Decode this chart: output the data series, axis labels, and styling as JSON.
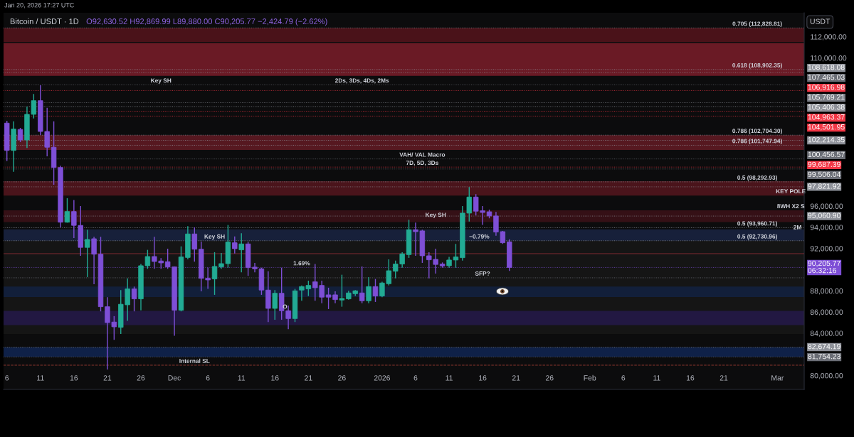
{
  "chart_data": {
    "type": "candlestick",
    "title": "Bitcoin / USDT · 1D",
    "subtitle": "O92,630.52 H92,869.99 L89,880.00 C90,205.77 −2,424.79 (−2.62%)",
    "ylabel": "USDT",
    "x": [
      "2025-11-06",
      "2025-11-07",
      "2025-11-08",
      "2025-11-09",
      "2025-11-10",
      "2025-11-11",
      "2025-11-12",
      "2025-11-13",
      "2025-11-14",
      "2025-11-15",
      "2025-11-16",
      "2025-11-17",
      "2025-11-18",
      "2025-11-19",
      "2025-11-20",
      "2025-11-21",
      "2025-11-22",
      "2025-11-23",
      "2025-11-24",
      "2025-11-25",
      "2025-11-26",
      "2025-11-27",
      "2025-11-28",
      "2025-11-29",
      "2025-11-30",
      "2025-12-01",
      "2025-12-02",
      "2025-12-03",
      "2025-12-04",
      "2025-12-05",
      "2025-12-06",
      "2025-12-07",
      "2025-12-08",
      "2025-12-09",
      "2025-12-10",
      "2025-12-11",
      "2025-12-12",
      "2025-12-13",
      "2025-12-14",
      "2025-12-15",
      "2025-12-16",
      "2025-12-17",
      "2025-12-18",
      "2025-12-19",
      "2025-12-20",
      "2025-12-21",
      "2025-12-22",
      "2025-12-23",
      "2025-12-24",
      "2025-12-25",
      "2025-12-26",
      "2025-12-27",
      "2025-12-28",
      "2025-12-29",
      "2025-12-30",
      "2025-12-31",
      "2026-01-01",
      "2026-01-02",
      "2026-01-03",
      "2026-01-04",
      "2026-01-05",
      "2026-01-06",
      "2026-01-07",
      "2026-01-08",
      "2026-01-09",
      "2026-01-10",
      "2026-01-11",
      "2026-01-12",
      "2026-01-13",
      "2026-01-14",
      "2026-01-15",
      "2026-01-16",
      "2026-01-17",
      "2026-01-18",
      "2026-01-19",
      "2026-01-20"
    ],
    "ohlc": [
      [
        103840,
        104060,
        100260,
        101260
      ],
      [
        101260,
        104010,
        99250,
        103280
      ],
      [
        103240,
        103390,
        102050,
        102250
      ],
      [
        102250,
        105400,
        101490,
        104670
      ],
      [
        104670,
        106590,
        104280,
        105960
      ],
      [
        105960,
        107420,
        102720,
        103050
      ],
      [
        103050,
        105290,
        100710,
        101560
      ],
      [
        101560,
        104010,
        98020,
        99650
      ],
      [
        99650,
        99810,
        93990,
        94480
      ],
      [
        94480,
        96750,
        94440,
        95490
      ],
      [
        95490,
        96570,
        92990,
        94180
      ],
      [
        94180,
        96010,
        91310,
        92100
      ],
      [
        92100,
        93770,
        89300,
        92850
      ],
      [
        92920,
        93100,
        88630,
        91460
      ],
      [
        91460,
        93100,
        86060,
        86500
      ],
      [
        86500,
        87400,
        80570,
        85000
      ],
      [
        85050,
        85610,
        83370,
        84600
      ],
      [
        84550,
        88070,
        83930,
        86730
      ],
      [
        86680,
        89180,
        85160,
        88180
      ],
      [
        88180,
        88400,
        86060,
        87240
      ],
      [
        87240,
        90530,
        86160,
        90370
      ],
      [
        90370,
        91870,
        90080,
        91240
      ],
      [
        91240,
        93100,
        90080,
        90770
      ],
      [
        90820,
        91090,
        90080,
        90640
      ],
      [
        90750,
        91980,
        90080,
        90260
      ],
      [
        90260,
        90300,
        83750,
        86160
      ],
      [
        86160,
        92200,
        86060,
        91200
      ],
      [
        91150,
        94110,
        90980,
        93370
      ],
      [
        93370,
        93990,
        90750,
        91930
      ],
      [
        91930,
        92650,
        87950,
        89180
      ],
      [
        89180,
        90190,
        88180,
        89030
      ],
      [
        89120,
        91650,
        87620,
        90300
      ],
      [
        90260,
        91580,
        90080,
        90570
      ],
      [
        90570,
        94220,
        90190,
        92610
      ],
      [
        92540,
        93140,
        91530,
        91980
      ],
      [
        91870,
        93440,
        89750,
        92430
      ],
      [
        92430,
        92650,
        89410,
        90190
      ],
      [
        90240,
        90630,
        89750,
        90080
      ],
      [
        90080,
        90190,
        87620,
        88070
      ],
      [
        88070,
        89850,
        85050,
        86340
      ],
      [
        86340,
        88070,
        85270,
        87770
      ],
      [
        87770,
        90190,
        85270,
        86120
      ],
      [
        86120,
        86610,
        84380,
        85380
      ],
      [
        85380,
        88180,
        85050,
        88000
      ],
      [
        88070,
        88510,
        87060,
        88400
      ],
      [
        88180,
        88960,
        87510,
        88510
      ],
      [
        88850,
        90530,
        87060,
        88290
      ],
      [
        88510,
        88960,
        86830,
        87400
      ],
      [
        87620,
        88290,
        86280,
        87400
      ],
      [
        87620,
        87950,
        86830,
        87170
      ],
      [
        87130,
        89520,
        86500,
        87280
      ],
      [
        87240,
        88000,
        87170,
        87800
      ],
      [
        87730,
        88070,
        87510,
        88000
      ],
      [
        87800,
        90300,
        86830,
        87060
      ],
      [
        87060,
        89300,
        86830,
        88400
      ],
      [
        88400,
        89120,
        86950,
        87510
      ],
      [
        87510,
        88850,
        87400,
        88740
      ],
      [
        88670,
        90970,
        88510,
        89900
      ],
      [
        89850,
        90860,
        89180,
        90530
      ],
      [
        90530,
        91650,
        90190,
        91490
      ],
      [
        91420,
        94710,
        91110,
        93770
      ],
      [
        93770,
        94440,
        91310,
        93590
      ],
      [
        93660,
        93770,
        90640,
        91310
      ],
      [
        91310,
        91650,
        89180,
        90930
      ],
      [
        90970,
        91980,
        89630,
        90490
      ],
      [
        90530,
        90680,
        90190,
        90350
      ],
      [
        90370,
        91200,
        90190,
        90910
      ],
      [
        90910,
        92430,
        90190,
        91200
      ],
      [
        91130,
        96010,
        90860,
        95340
      ],
      [
        95340,
        97800,
        94550,
        96860
      ],
      [
        96860,
        97130,
        95120,
        95520
      ],
      [
        95560,
        96010,
        94220,
        95400
      ],
      [
        95470,
        95670,
        94850,
        95070
      ],
      [
        95070,
        95450,
        93210,
        93550
      ],
      [
        93590,
        93660,
        92430,
        92540
      ],
      [
        92630.52,
        92869.99,
        89880.0,
        90205.77
      ]
    ],
    "colors": [
      "#7e4fd6",
      "#22ab94",
      "#7e4fd6",
      "#22ab94",
      "#22ab94",
      "#7e4fd6",
      "#7e4fd6",
      "#7e4fd6",
      "#7e4fd6",
      "#22ab94",
      "#7e4fd6",
      "#7e4fd6",
      "#22ab94",
      "#7e4fd6",
      "#7e4fd6",
      "#7e4fd6",
      "#7e4fd6",
      "#22ab94",
      "#22ab94",
      "#7e4fd6",
      "#22ab94",
      "#22ab94",
      "#7e4fd6",
      "#7e4fd6",
      "#7e4fd6",
      "#7e4fd6",
      "#22ab94",
      "#22ab94",
      "#7e4fd6",
      "#7e4fd6",
      "#7e4fd6",
      "#22ab94",
      "#22ab94",
      "#22ab94",
      "#7e4fd6",
      "#22ab94",
      "#7e4fd6",
      "#7e4fd6",
      "#7e4fd6",
      "#7e4fd6",
      "#22ab94",
      "#7e4fd6",
      "#7e4fd6",
      "#22ab94",
      "#22ab94",
      "#22ab94",
      "#7e4fd6",
      "#7e4fd6",
      "#7e4fd6",
      "#7e4fd6",
      "#22ab94",
      "#22ab94",
      "#22ab94",
      "#7e4fd6",
      "#22ab94",
      "#7e4fd6",
      "#22ab94",
      "#22ab94",
      "#22ab94",
      "#22ab94",
      "#22ab94",
      "#7e4fd6",
      "#7e4fd6",
      "#7e4fd6",
      "#7e4fd6",
      "#7e4fd6",
      "#22ab94",
      "#22ab94",
      "#22ab94",
      "#22ab94",
      "#7e4fd6",
      "#7e4fd6",
      "#7e4fd6",
      "#7e4fd6",
      "#7e4fd6",
      "#7e4fd6"
    ],
    "xlim": [
      "2025-11-05T12:00",
      "2026-03-05"
    ],
    "ylim": [
      78690,
      114260
    ],
    "xticks": [
      {
        "value": "2025-11-06",
        "label": "6"
      },
      {
        "value": "2025-11-11",
        "label": "11"
      },
      {
        "value": "2025-11-16",
        "label": "16"
      },
      {
        "value": "2025-11-21",
        "label": "21"
      },
      {
        "value": "2025-11-26",
        "label": "26"
      },
      {
        "value": "2025-12-01",
        "label": "Dec"
      },
      {
        "value": "2025-12-06",
        "label": "6"
      },
      {
        "value": "2025-12-11",
        "label": "11"
      },
      {
        "value": "2025-12-16",
        "label": "16"
      },
      {
        "value": "2025-12-21",
        "label": "21"
      },
      {
        "value": "2025-12-26",
        "label": "26"
      },
      {
        "value": "2026-01-01",
        "label": "2026"
      },
      {
        "value": "2026-01-06",
        "label": "6"
      },
      {
        "value": "2026-01-11",
        "label": "11"
      },
      {
        "value": "2026-01-16",
        "label": "16"
      },
      {
        "value": "2026-01-21",
        "label": "21"
      },
      {
        "value": "2026-01-26",
        "label": "26"
      },
      {
        "value": "2026-02-01",
        "label": "Feb"
      },
      {
        "value": "2026-02-06",
        "label": "6"
      },
      {
        "value": "2026-02-11",
        "label": "11"
      },
      {
        "value": "2026-02-16",
        "label": "16"
      },
      {
        "value": "2026-02-21",
        "label": "21"
      },
      {
        "value": "2026-03-01",
        "label": "Mar"
      }
    ],
    "yticks": [
      {
        "value": 112000,
        "label": "112,000.00"
      },
      {
        "value": 110000,
        "label": "110,000.00"
      },
      {
        "value": 96000,
        "label": "96,000.00"
      },
      {
        "value": 94000,
        "label": "94,000.00"
      },
      {
        "value": 92000,
        "label": "92,000.00"
      },
      {
        "value": 88000,
        "label": "88,000.00"
      },
      {
        "value": 86000,
        "label": "86,000.00"
      },
      {
        "value": 84000,
        "label": "84,000.00"
      },
      {
        "value": 80000,
        "label": "80,000.00"
      }
    ],
    "bands": [
      {
        "axis": "y",
        "from": 93660,
        "to": 83930,
        "color": "#151515"
      },
      {
        "axis": "y",
        "from": 112830,
        "to": 111500,
        "color": "#4a1219"
      },
      {
        "axis": "y",
        "from": 111400,
        "to": 108300,
        "color": "#6a1a25"
      },
      {
        "axis": "y",
        "from": 102704.3,
        "to": 101300,
        "color": "#561820"
      },
      {
        "axis": "y",
        "from": 98350,
        "to": 97000,
        "color": "#4a141b"
      },
      {
        "axis": "y",
        "from": 95600,
        "to": 94500,
        "color": "#351016"
      },
      {
        "axis": "y",
        "from": 93800,
        "to": 92730.96,
        "color": "#17203a"
      },
      {
        "axis": "y",
        "from": 88400,
        "to": 87420,
        "color": "#121f3a"
      },
      {
        "axis": "y",
        "from": 86110,
        "to": 84770,
        "color": "#221842"
      },
      {
        "axis": "y",
        "from": 82674.19,
        "to": 81754.23,
        "color": "#0f2148"
      }
    ],
    "ref_lines": [
      {
        "axis": "y",
        "value": 108618.08,
        "label": "108,618.08",
        "color": "#8e9199",
        "line_style": "dotted"
      },
      {
        "axis": "y",
        "value": 107465.03,
        "label": "107,465.03",
        "color": "#6a6d75",
        "line_style": "dotted"
      },
      {
        "axis": "y",
        "value": 106916.98,
        "label": "106,916.98",
        "color": "#f23645",
        "line_style": "dotted"
      },
      {
        "axis": "y",
        "value": 105769.21,
        "label": "105,769.21",
        "color": "#7a7d85",
        "line_style": "dotted"
      },
      {
        "axis": "y",
        "value": 105406.38,
        "label": "105,406.38",
        "color": "#8e9199",
        "line_style": "dotted"
      },
      {
        "axis": "y",
        "value": 104963.37,
        "label": "104,963.37",
        "color": "#f23645",
        "line_style": "dotted"
      },
      {
        "axis": "y",
        "value": 104501.95,
        "label": "104,501.95",
        "color": "#f23645",
        "line_style": "dotted"
      },
      {
        "axis": "y",
        "value": 102214.35,
        "label": "102,214.35",
        "color": "#8e9199",
        "line_style": "dotted"
      },
      {
        "axis": "y",
        "value": 100456.57,
        "label": "100,456.57",
        "color": "#6a6d75",
        "line_style": "dotted"
      },
      {
        "axis": "y",
        "value": 99687.39,
        "label": "99,687.39",
        "color": "#f23645",
        "line_style": "dotted"
      },
      {
        "axis": "y",
        "value": 99506.04,
        "label": "99,506.04",
        "color": "#6a6d75",
        "line_style": "dotted"
      },
      {
        "axis": "y",
        "value": 97821.92,
        "label": "97,821.92",
        "color": "#8e9199",
        "line_style": "dotted"
      },
      {
        "axis": "y",
        "value": 95060.9,
        "label": "95,060.90",
        "color": "#8e9199",
        "line_style": "dotted"
      },
      {
        "axis": "y",
        "value": 90205.77,
        "label": "90,205.77\n06:32:16",
        "color": "#7e4fd6",
        "line_style": "dotted"
      },
      {
        "axis": "y",
        "value": 82674.19,
        "label": "82,674.19",
        "color": "#8e9199",
        "line_style": "dotted"
      },
      {
        "axis": "y",
        "value": 81754.23,
        "label": "81,754.23",
        "color": "#6a6d75",
        "line_style": "dotted"
      },
      {
        "axis": "y",
        "value": 112828.81,
        "color": "#9598a1",
        "line_style": "dotted"
      },
      {
        "axis": "y",
        "value": 108902.35,
        "color": "#9598a1",
        "line_style": "dotted"
      },
      {
        "axis": "y",
        "value": 102704.3,
        "color": "#9598a1",
        "line_style": "dotted"
      },
      {
        "axis": "y",
        "value": 101747.94,
        "color": "#9598a1",
        "line_style": "dotted"
      },
      {
        "axis": "y",
        "value": 98292.93,
        "color": "#9598a1",
        "line_style": "dotted"
      },
      {
        "axis": "y",
        "value": 93960.71,
        "color": "#9598a1",
        "line_style": "dotted"
      },
      {
        "axis": "y",
        "value": 92730.96,
        "color": "#9598a1",
        "line_style": "dotted"
      },
      {
        "axis": "y",
        "value": 91510,
        "color": "#a8323e",
        "line_style": "solid"
      },
      {
        "axis": "y",
        "value": 89230,
        "color": "#787b86",
        "line_style": "dotted"
      },
      {
        "axis": "y",
        "value": 80975,
        "color": "#c0483e",
        "line_style": "dashed"
      }
    ],
    "annotations": [
      "Jan 20, 2026 17:27 UTC",
      {
        "text": "Key SH",
        "x": "2025-11-29",
        "y": 107465.03
      },
      {
        "text": "2Ds, 3Ds, 4Ds, 2Ms",
        "x": "2025-12-29",
        "y": 107465.03
      },
      {
        "text": "VAH/ VAL Macro",
        "x": "2026-01-07",
        "y": 100456.57
      },
      {
        "text": "7D, 5D, 3Ds",
        "x": "2026-01-07",
        "y": 99687.39
      },
      {
        "text": "Key SH",
        "x": "2025-12-07",
        "y": 92730.96
      },
      {
        "text": "Key SH",
        "x": "2026-01-09",
        "y": 94780
      },
      {
        "text": "1.69%",
        "x": "2025-12-20",
        "y": 90205.77
      },
      {
        "text": "−0.79%",
        "x": "2026-01-15T12:00",
        "y": 92730.96
      },
      {
        "text": "SFP?",
        "x": "2026-01-16",
        "y": 89230
      },
      {
        "text": "Internal SL",
        "x": "2025-12-04",
        "y": 80975
      },
      {
        "text": "O",
        "x": "2025-12-17T12:00",
        "y": 86110
      },
      {
        "text": "0.705 (112,828.81)",
        "x": "2026-02-26",
        "y": 112828.81
      },
      {
        "text": "0.618 (108,902.35)",
        "x": "2026-02-26",
        "y": 108902.35
      },
      {
        "text": "0.786 (102,704.30)",
        "x": "2026-02-26",
        "y": 102704.3
      },
      {
        "text": "0.786 (101,747.94)",
        "x": "2026-02-26",
        "y": 101747.94
      },
      {
        "text": "0.5 (98,292.93)",
        "x": "2026-02-26",
        "y": 98292.93
      },
      {
        "text": "KEY POLE",
        "x": "2026-03-03",
        "y": 97000
      },
      {
        "text": "8WH X2 S",
        "x": "2026-03-03",
        "y": 95600
      },
      {
        "text": "0.5 (93,960.71)",
        "x": "2026-02-26",
        "y": 93960.71
      },
      {
        "text": "2M",
        "x": "2026-03-04",
        "y": 93600
      },
      {
        "text": "0.5 (92,730.96)",
        "x": "2026-02-26",
        "y": 92730.96
      }
    ]
  }
}
